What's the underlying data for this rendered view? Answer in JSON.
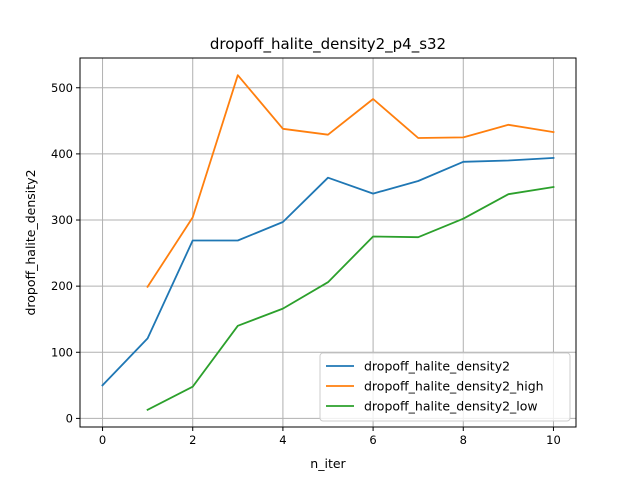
{
  "chart_data": {
    "type": "line",
    "title": "dropoff_halite_density2_p4_s32",
    "xlabel": "n_iter",
    "ylabel": "dropoff_halite_density2",
    "xlim": [
      -0.5,
      10.5
    ],
    "ylim": [
      -13,
      545
    ],
    "xticks": [
      0,
      2,
      4,
      6,
      8,
      10
    ],
    "yticks": [
      0,
      100,
      200,
      300,
      400,
      500
    ],
    "grid": true,
    "legend_position": "lower-right",
    "series": [
      {
        "name": "dropoff_halite_density2",
        "color": "#1f77b4",
        "x": [
          0,
          1,
          2,
          3,
          4,
          5,
          6,
          7,
          8,
          9,
          10
        ],
        "y": [
          50,
          121,
          269,
          269,
          297,
          364,
          340,
          359,
          388,
          390,
          394
        ]
      },
      {
        "name": "dropoff_halite_density2_high",
        "color": "#ff7f0e",
        "x": [
          1,
          2,
          3,
          4,
          5,
          6,
          7,
          8,
          9,
          10
        ],
        "y": [
          199,
          304,
          519,
          438,
          429,
          483,
          424,
          425,
          444,
          433
        ]
      },
      {
        "name": "dropoff_halite_density2_low",
        "color": "#2ca02c",
        "x": [
          1,
          2,
          3,
          4,
          5,
          6,
          7,
          8,
          9,
          10
        ],
        "y": [
          13,
          48,
          140,
          166,
          206,
          275,
          274,
          302,
          339,
          350
        ]
      }
    ]
  }
}
